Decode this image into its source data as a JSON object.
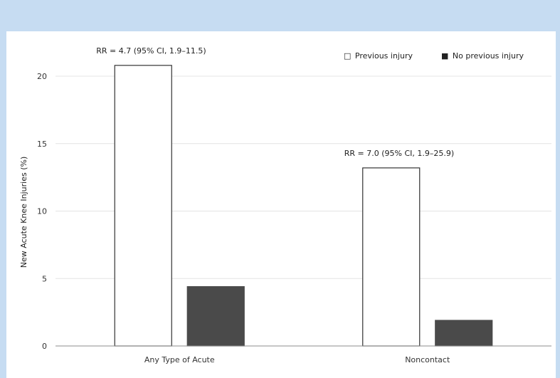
{
  "chart_data": {
    "type": "bar",
    "title": "",
    "xlabel": "",
    "ylabel": "New Acute Knee Injuries (%)",
    "ylim": [
      0,
      20
    ],
    "yticks": [
      0,
      5,
      10,
      15,
      20
    ],
    "grid": true,
    "legend_position": "top-right",
    "categories": [
      "Any Type of Acute",
      "Noncontact"
    ],
    "series": [
      {
        "name": "Previous injury",
        "values": [
          20.8,
          13.2
        ],
        "color": "#ffffff",
        "stroke": "#333333"
      },
      {
        "name": "No previous injury",
        "values": [
          4.4,
          1.9
        ],
        "color": "#4a4a4a",
        "stroke": "#4a4a4a"
      }
    ],
    "annotations": [
      {
        "category_index": 0,
        "text": "RR = 4.7 (95% CI, 1.9–11.5)"
      },
      {
        "category_index": 1,
        "text": "RR = 7.0 (95% CI, 1.9–25.9)"
      }
    ],
    "legend_symbols": [
      "□",
      "■"
    ]
  }
}
